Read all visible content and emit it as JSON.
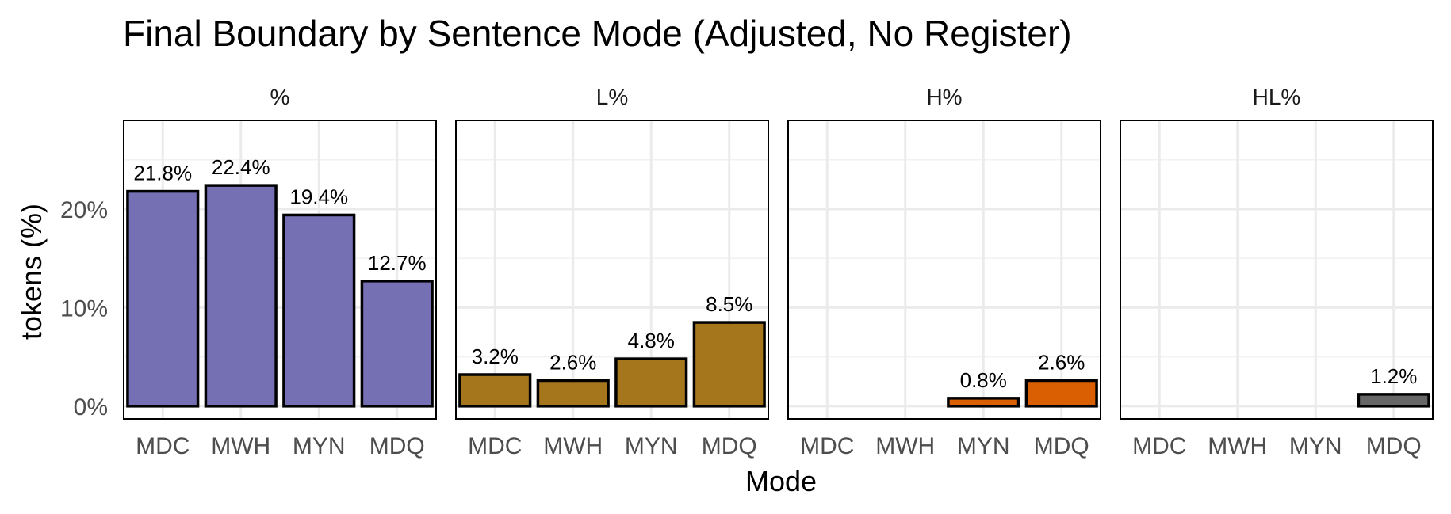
{
  "chart_data": {
    "type": "bar",
    "title": "Final Boundary by Sentence Mode (Adjusted, No Register)",
    "xlabel": "Mode",
    "ylabel": "tokens (%)",
    "categories": [
      "MDC",
      "MWH",
      "MYN",
      "MDQ"
    ],
    "yticks": [
      0,
      10,
      20
    ],
    "ytick_labels": [
      "0%",
      "10%",
      "20%"
    ],
    "ylim": [
      -1.3,
      29
    ],
    "grid": true,
    "facets": [
      {
        "label": "%",
        "color": "#7570B3",
        "values": [
          21.8,
          22.4,
          19.4,
          12.7
        ],
        "value_labels": [
          "21.8%",
          "22.4%",
          "19.4%",
          "12.7%"
        ]
      },
      {
        "label": "L%",
        "color": "#A6761D",
        "values": [
          3.2,
          2.6,
          4.8,
          8.5
        ],
        "value_labels": [
          "3.2%",
          "2.6%",
          "4.8%",
          "8.5%"
        ]
      },
      {
        "label": "H%",
        "color": "#D95F02",
        "values": [
          null,
          null,
          0.8,
          2.6
        ],
        "value_labels": [
          "",
          "",
          "0.8%",
          "2.6%"
        ]
      },
      {
        "label": "HL%",
        "color": "#666666",
        "values": [
          null,
          null,
          null,
          1.2
        ],
        "value_labels": [
          "",
          "",
          "",
          "1.2%"
        ]
      }
    ]
  }
}
